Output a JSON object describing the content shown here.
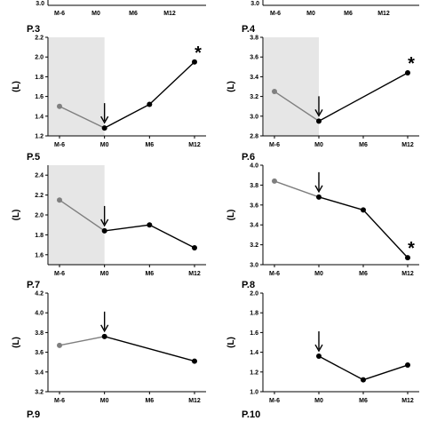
{
  "colors": {
    "axis": "#000000",
    "pre_period": "#7f7f7f",
    "post_period": "#000000",
    "shade": "#e6e6e6"
  },
  "top_strip": {
    "left": {
      "categories": [
        "M-6",
        "M0",
        "M6",
        "M12"
      ],
      "ytick": "3.0"
    },
    "right": {
      "categories": [
        "M-6",
        "M0",
        "M6",
        "M12"
      ],
      "ytick": "3.0"
    }
  },
  "chart_data": [
    {
      "type": "line",
      "panel_label": "P.3",
      "ylabel": "(L)",
      "categories": [
        "M-6",
        "M0",
        "M6",
        "M12"
      ],
      "values": [
        1.5,
        1.28,
        1.52,
        1.95
      ],
      "ylim": [
        1.2,
        2.2
      ],
      "yticks": [
        "1.2",
        "1.4",
        "1.6",
        "1.8",
        "2.0",
        "2.2"
      ],
      "shaded_region": [
        "M-6",
        "M0"
      ],
      "arrow_at": "M0",
      "significant_at": "M12",
      "grid": false
    },
    {
      "type": "line",
      "panel_label": "P.4",
      "ylabel": "(L)",
      "categories": [
        "M-6",
        "M0",
        "M6",
        "M12"
      ],
      "values": [
        3.25,
        2.95,
        null,
        3.44
      ],
      "ylim": [
        2.8,
        3.8
      ],
      "yticks": [
        "2.8",
        "3.0",
        "3.2",
        "3.4",
        "3.6",
        "3.8"
      ],
      "shaded_region": [
        "M-6",
        "M0"
      ],
      "arrow_at": "M0",
      "significant_at": "M12",
      "grid": false
    },
    {
      "type": "line",
      "panel_label": "P.5",
      "ylabel": "(L)",
      "categories": [
        "M-6",
        "M0",
        "M6",
        "M12"
      ],
      "values": [
        2.15,
        1.84,
        1.9,
        1.67
      ],
      "ylim": [
        1.5,
        2.5
      ],
      "yticks": [
        "1.6",
        "1.8",
        "2.0",
        "2.2",
        "2.4"
      ],
      "shaded_region": [
        "M-6",
        "M0"
      ],
      "arrow_at": "M0",
      "significant_at": null,
      "grid": false
    },
    {
      "type": "line",
      "panel_label": "P.6",
      "ylabel": "(L)",
      "categories": [
        "M-6",
        "M0",
        "M6",
        "M12"
      ],
      "values": [
        3.84,
        3.68,
        3.55,
        3.07
      ],
      "ylim": [
        3.0,
        4.0
      ],
      "yticks": [
        "3.0",
        "3.2",
        "3.4",
        "3.6",
        "3.8",
        "4.0"
      ],
      "shaded_region": null,
      "arrow_at": "M0",
      "significant_at": "M12",
      "grid": false
    },
    {
      "type": "line",
      "panel_label": "P.7",
      "ylabel": "(L)",
      "categories": [
        "M-6",
        "M0",
        "M6",
        "M12"
      ],
      "values": [
        3.67,
        3.76,
        null,
        3.51
      ],
      "ylim": [
        3.2,
        4.2
      ],
      "yticks": [
        "3.2",
        "3.4",
        "3.6",
        "3.8",
        "4.0",
        "4.2"
      ],
      "shaded_region": null,
      "arrow_at": "M0",
      "significant_at": null,
      "grid": false
    },
    {
      "type": "line",
      "panel_label": "P.8",
      "ylabel": "(L)",
      "categories": [
        "M-6",
        "M0",
        "M6",
        "M12"
      ],
      "values": [
        null,
        1.36,
        1.12,
        1.27
      ],
      "ylim": [
        1.0,
        2.0
      ],
      "yticks": [
        "1.0",
        "1.2",
        "1.4",
        "1.6",
        "1.8",
        "2.0"
      ],
      "shaded_region": null,
      "arrow_at": "M0",
      "significant_at": null,
      "grid": false
    }
  ],
  "bottom_labels": [
    "P.9",
    "P.10"
  ]
}
